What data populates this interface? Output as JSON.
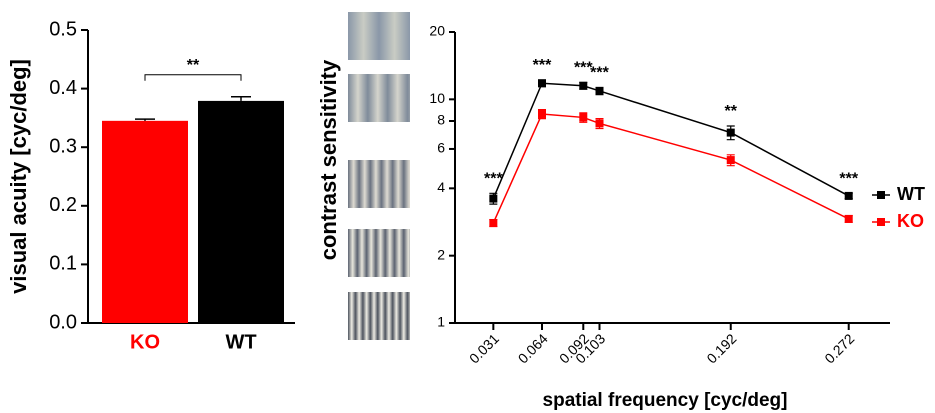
{
  "chart_data": [
    {
      "type": "bar",
      "y_label": "visual acuity [cyc/deg]",
      "categories": [
        "KO",
        "WT"
      ],
      "values": [
        0.345,
        0.379
      ],
      "errors": [
        0.003,
        0.007
      ],
      "colors": [
        "#ff0000",
        "#000000"
      ],
      "ylim": [
        0,
        0.5
      ],
      "yticks": [
        {
          "value": 0,
          "label": "0.0"
        },
        0.1,
        0.2,
        0.3,
        0.4,
        0.5
      ],
      "annotation": "**"
    },
    {
      "type": "line",
      "x_label": "spatial frequency [cyc/deg]",
      "y_label": "contrast sensitivity",
      "y_scale": "log",
      "x": [
        0.031,
        0.064,
        0.092,
        0.103,
        0.192,
        0.272
      ],
      "series": [
        {
          "name": "WT",
          "color": "#000000",
          "values": [
            3.6,
            11.8,
            11.5,
            10.9,
            7.1,
            3.7
          ],
          "errors": [
            0.2,
            0.4,
            0.4,
            0.4,
            0.5,
            0.1
          ]
        },
        {
          "name": "KO",
          "color": "#ff0000",
          "values": [
            2.8,
            8.6,
            8.3,
            7.8,
            5.35,
            2.92
          ],
          "errors": [
            0.1,
            0.4,
            0.4,
            0.4,
            0.3,
            0.1
          ]
        }
      ],
      "significance": [
        "***",
        "***",
        "***",
        "***",
        "**",
        "***"
      ],
      "xlim": [
        0.005,
        0.3
      ],
      "xticks": [
        0.031,
        0.064,
        0.092,
        0.103,
        0.192,
        0.272
      ],
      "ylim": [
        1,
        20
      ],
      "yticks": [
        1,
        2,
        4,
        6,
        8,
        10,
        20
      ],
      "legend": "right"
    }
  ]
}
